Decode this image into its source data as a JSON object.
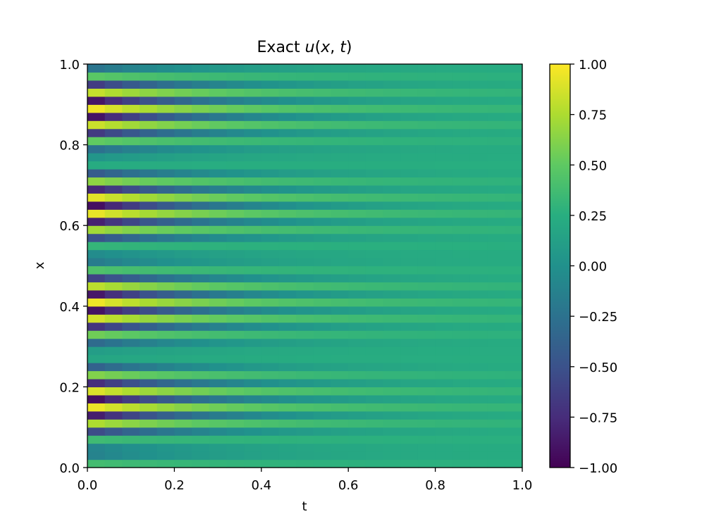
{
  "chart_data": {
    "type": "heatmap",
    "title": "Exact u(x, t)",
    "title_parts": {
      "prefix": "Exact ",
      "func": "u",
      "args": [
        "x",
        "t"
      ]
    },
    "xlabel": "t",
    "ylabel": "x",
    "xlim": [
      0,
      1
    ],
    "ylim": [
      0,
      1
    ],
    "xticks": [
      0.0,
      0.2,
      0.4,
      0.6,
      0.8,
      1.0
    ],
    "xtick_labels": [
      "0.0",
      "0.2",
      "0.4",
      "0.6",
      "0.8",
      "1.0"
    ],
    "yticks": [
      0.0,
      0.2,
      0.4,
      0.6,
      0.8,
      1.0
    ],
    "ytick_labels": [
      "0.0",
      "0.2",
      "0.4",
      "0.6",
      "0.8",
      "1.0"
    ],
    "colormap": "viridis",
    "colorbar": {
      "range": [
        -1.0,
        1.0
      ],
      "ticks": [
        1.0,
        0.75,
        0.5,
        0.25,
        0.0,
        -0.25,
        -0.5,
        -0.75,
        -1.0
      ],
      "tick_labels": [
        "1.00",
        "0.75",
        "0.50",
        "0.25",
        "0.00",
        "−0.25",
        "−0.50",
        "−0.75",
        "−1.00"
      ]
    },
    "field": {
      "function": "u(x,t) = exp(-t) * sin(8*pi*x) ... striped oscillation in x, decaying toward ~0.25 with increasing t",
      "x_stripes": 50,
      "t_columns": 25,
      "decay_end_value": 0.28
    }
  }
}
